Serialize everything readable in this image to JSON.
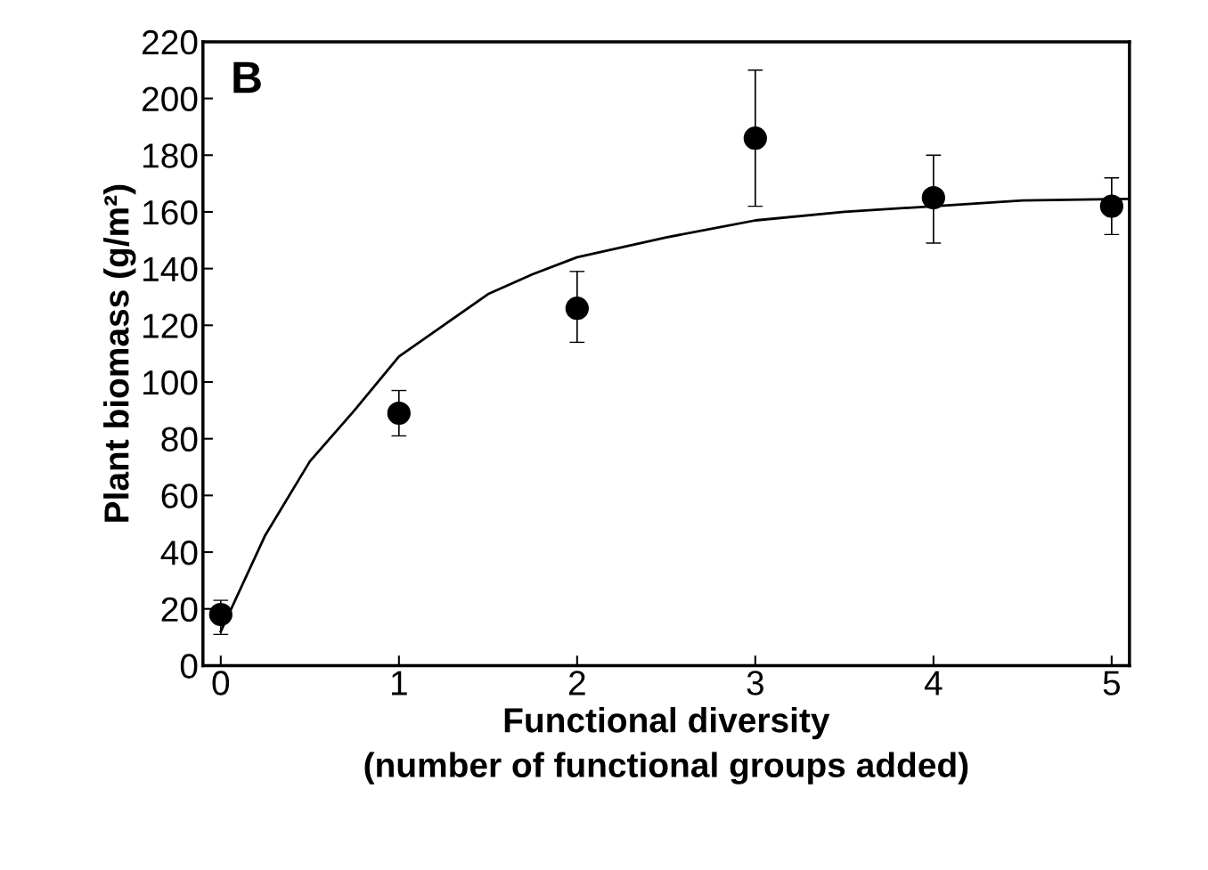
{
  "chart_data": {
    "type": "scatter",
    "ylabel": "Plant biomass (g/m²)",
    "xlabel": "Functional diversity\n(number of functional groups added)",
    "annotations": [
      "B"
    ],
    "xlim": [
      -0.1,
      5.1
    ],
    "xticks": [
      0,
      1,
      2,
      3,
      4,
      5
    ],
    "ylim": [
      0,
      220
    ],
    "yticks": [
      0,
      20,
      40,
      60,
      80,
      100,
      120,
      140,
      160,
      180,
      200,
      220
    ],
    "grid": false,
    "series": [
      {
        "marker": "circle",
        "color": "#000000",
        "x": [
          0,
          1,
          2,
          3,
          4,
          5
        ],
        "values": [
          18,
          89,
          126,
          186,
          165,
          162
        ],
        "errors": [
          [
            11,
            23
          ],
          [
            81,
            97
          ],
          [
            114,
            139
          ],
          [
            162,
            210
          ],
          [
            149,
            180
          ],
          [
            152,
            172
          ]
        ]
      },
      {
        "type": "line",
        "marker": "none",
        "color": "#000000",
        "line_style": "solid",
        "x": [
          0,
          0.25,
          0.5,
          0.75,
          1,
          1.25,
          1.5,
          1.75,
          2,
          2.5,
          3,
          3.5,
          4,
          4.5,
          5,
          5.1
        ],
        "values": [
          12,
          46,
          72,
          90,
          109,
          120,
          131,
          138,
          144,
          151,
          157,
          160,
          162,
          164,
          164.5,
          164.6
        ]
      }
    ]
  }
}
